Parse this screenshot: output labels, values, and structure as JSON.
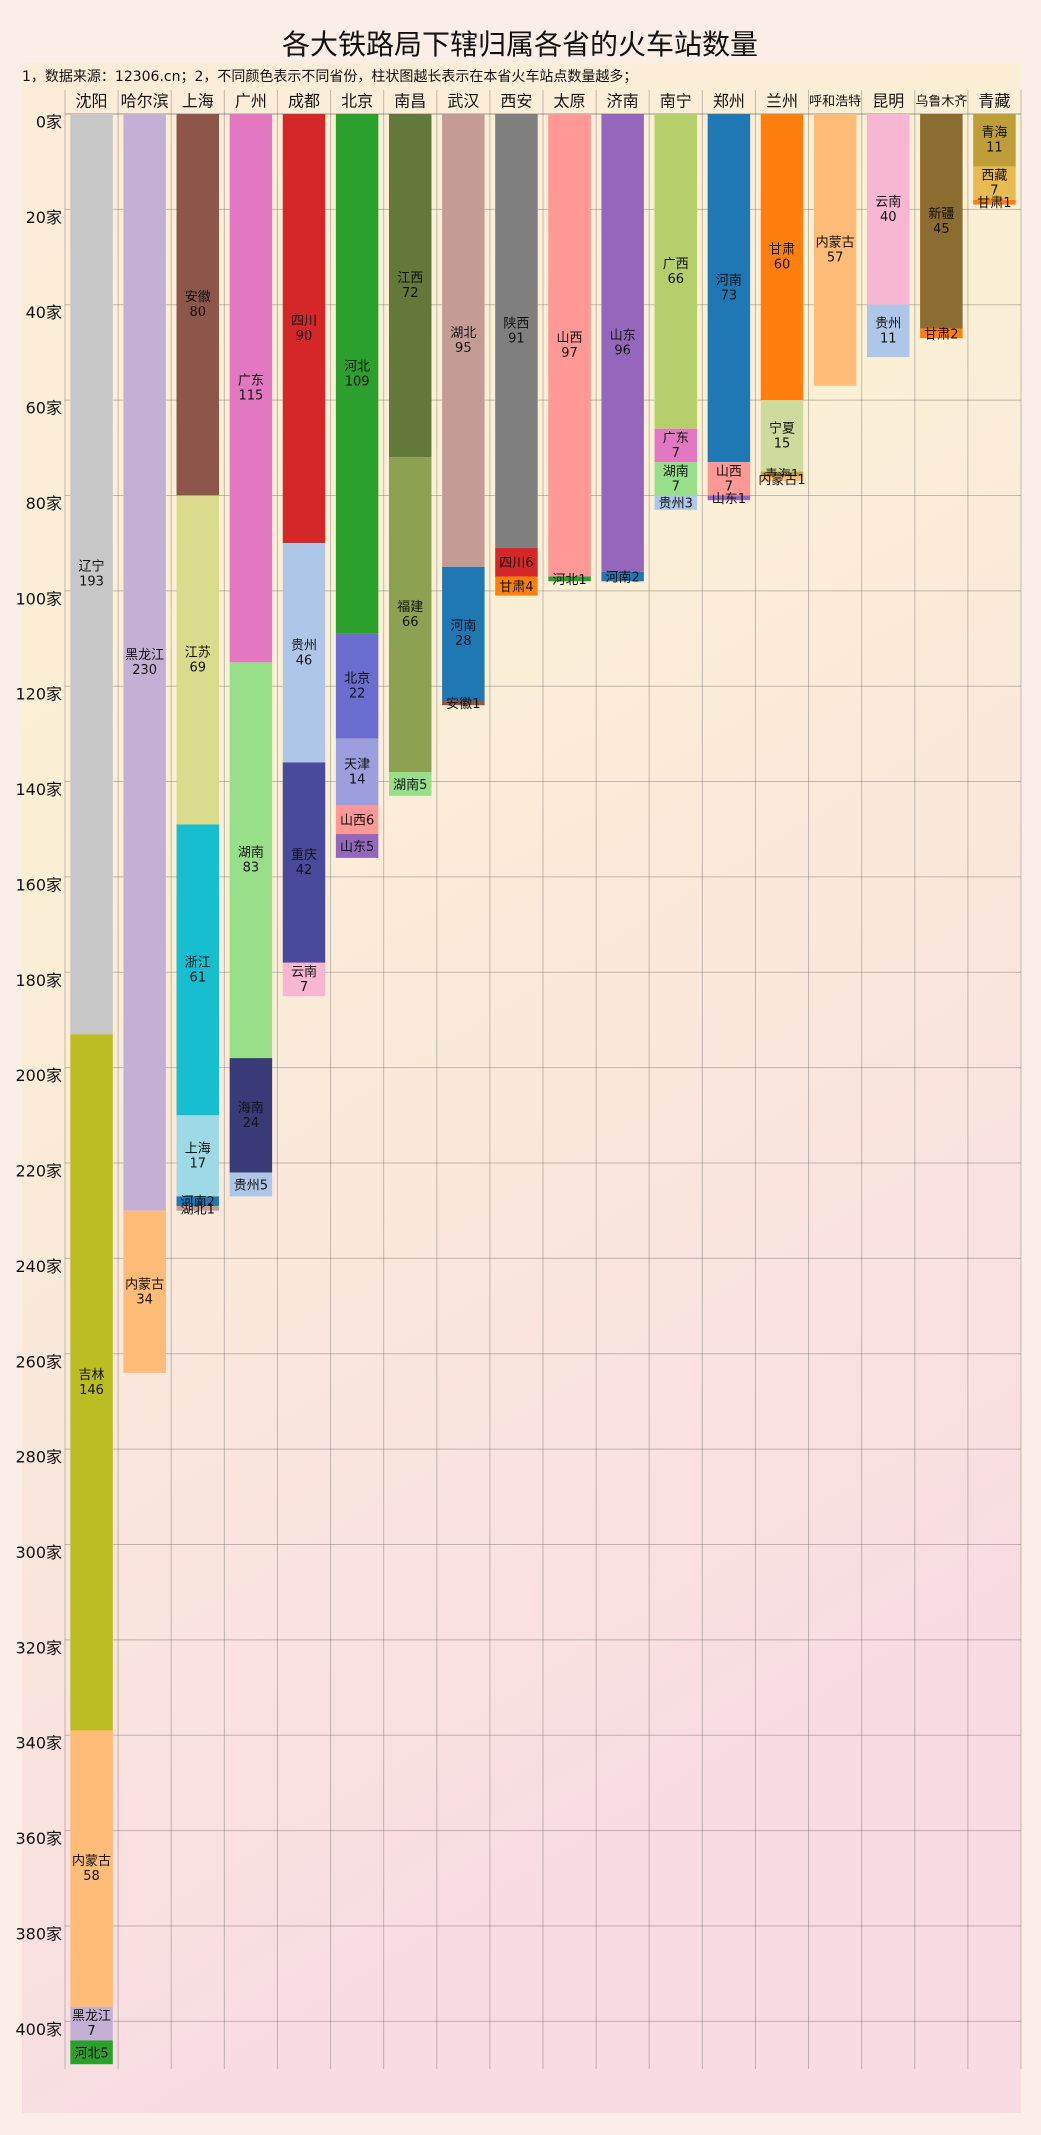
{
  "chart_data": {
    "type": "stacked_bar",
    "title": "各大铁路局下辖归属各省的火车站数量",
    "note": "1，数据来源：12306.cn；2，不同颜色表示不同省份，柱状图越长表示在本省火车站点数量越多；",
    "ylim": [
      0,
      410
    ],
    "yticks": [
      {
        "value": 0,
        "label": "0家"
      },
      {
        "value": 20,
        "label": "20家"
      },
      {
        "value": 40,
        "label": "40家"
      },
      {
        "value": 60,
        "label": "60家"
      },
      {
        "value": 80,
        "label": "80家"
      },
      {
        "value": 100,
        "label": "100家"
      },
      {
        "value": 120,
        "label": "120家"
      },
      {
        "value": 140,
        "label": "140家"
      },
      {
        "value": 160,
        "label": "160家"
      },
      {
        "value": 180,
        "label": "180家"
      },
      {
        "value": 200,
        "label": "200家"
      },
      {
        "value": 220,
        "label": "220家"
      },
      {
        "value": 240,
        "label": "240家"
      },
      {
        "value": 260,
        "label": "260家"
      },
      {
        "value": 280,
        "label": "280家"
      },
      {
        "value": 300,
        "label": "300家"
      },
      {
        "value": 320,
        "label": "320家"
      },
      {
        "value": 340,
        "label": "340家"
      },
      {
        "value": 360,
        "label": "360家"
      },
      {
        "value": 380,
        "label": "380家"
      },
      {
        "value": 400,
        "label": "400家"
      }
    ],
    "grid": true,
    "colors": {
      "辽宁": "#c7c7c7",
      "吉林": "#bcbd22",
      "内蒙古": "#ffbb78",
      "黑龙江": "#c5b0d5",
      "河北": "#2ca02c",
      "安徽": "#8c564b",
      "江苏": "#dbdb8d",
      "浙江": "#17becf",
      "上海": "#9edae5",
      "河南": "#1f77b4",
      "湖北": "#c49c94",
      "广东": "#e377c2",
      "湖南": "#98df8a",
      "海南": "#393b79",
      "贵州": "#aec7e8",
      "四川": "#d62728",
      "重庆": "#4a4a9c",
      "云南": "#f7b6d2",
      "北京": "#6b6ecf",
      "天津": "#9c9ede",
      "山西": "#ff9896",
      "山东": "#9467bd",
      "江西": "#637939",
      "福建": "#8ca252",
      "陕西": "#7f7f7f",
      "甘肃": "#ff7f0e",
      "广西": "#b5cf6b",
      "宁夏": "#cedb9c",
      "青海": "#bd9e39",
      "西藏": "#e7ba52",
      "新疆": "#8c6d31"
    },
    "categories": [
      "沈阳",
      "哈尔滨",
      "上海",
      "广州",
      "成都",
      "北京",
      "南昌",
      "武汉",
      "西安",
      "太原",
      "济南",
      "南宁",
      "郑州",
      "兰州",
      "呼和浩特",
      "昆明",
      "乌鲁木齐",
      "青藏"
    ],
    "stacks": [
      [
        {
          "name": "辽宁",
          "value": 193
        },
        {
          "name": "吉林",
          "value": 146
        },
        {
          "name": "内蒙古",
          "value": 58
        },
        {
          "name": "黑龙江",
          "value": 7
        },
        {
          "name": "河北",
          "value": 5
        }
      ],
      [
        {
          "name": "黑龙江",
          "value": 230
        },
        {
          "name": "内蒙古",
          "value": 34
        }
      ],
      [
        {
          "name": "安徽",
          "value": 80
        },
        {
          "name": "江苏",
          "value": 69
        },
        {
          "name": "浙江",
          "value": 61
        },
        {
          "name": "上海",
          "value": 17
        },
        {
          "name": "河南",
          "value": 2
        },
        {
          "name": "湖北",
          "value": 1
        }
      ],
      [
        {
          "name": "广东",
          "value": 115
        },
        {
          "name": "湖南",
          "value": 83
        },
        {
          "name": "海南",
          "value": 24
        },
        {
          "name": "贵州",
          "value": 5
        }
      ],
      [
        {
          "name": "四川",
          "value": 90
        },
        {
          "name": "贵州",
          "value": 46
        },
        {
          "name": "重庆",
          "value": 42
        },
        {
          "name": "云南",
          "value": 7
        }
      ],
      [
        {
          "name": "河北",
          "value": 109
        },
        {
          "name": "北京",
          "value": 22
        },
        {
          "name": "天津",
          "value": 14
        },
        {
          "name": "山西",
          "value": 6
        },
        {
          "name": "山东",
          "value": 5
        }
      ],
      [
        {
          "name": "江西",
          "value": 72
        },
        {
          "name": "福建",
          "value": 66
        },
        {
          "name": "湖南",
          "value": 5
        }
      ],
      [
        {
          "name": "湖北",
          "value": 95
        },
        {
          "name": "河南",
          "value": 28
        },
        {
          "name": "安徽",
          "value": 1
        }
      ],
      [
        {
          "name": "陕西",
          "value": 91
        },
        {
          "name": "四川",
          "value": 6
        },
        {
          "name": "甘肃",
          "value": 4
        }
      ],
      [
        {
          "name": "山西",
          "value": 97
        },
        {
          "name": "河北",
          "value": 1
        }
      ],
      [
        {
          "name": "山东",
          "value": 96
        },
        {
          "name": "河南",
          "value": 2
        }
      ],
      [
        {
          "name": "广西",
          "value": 66
        },
        {
          "name": "广东",
          "value": 7
        },
        {
          "name": "湖南",
          "value": 7
        },
        {
          "name": "贵州",
          "value": 3
        }
      ],
      [
        {
          "name": "河南",
          "value": 73
        },
        {
          "name": "山西",
          "value": 7
        },
        {
          "name": "山东",
          "value": 1
        }
      ],
      [
        {
          "name": "甘肃",
          "value": 60
        },
        {
          "name": "宁夏",
          "value": 15
        },
        {
          "name": "青海",
          "value": 1
        },
        {
          "name": "内蒙古",
          "value": 1
        }
      ],
      [
        {
          "name": "内蒙古",
          "value": 57
        }
      ],
      [
        {
          "name": "云南",
          "value": 40
        },
        {
          "name": "贵州",
          "value": 11
        }
      ],
      [
        {
          "name": "新疆",
          "value": 45
        },
        {
          "name": "甘肃",
          "value": 2
        }
      ],
      [
        {
          "name": "青海",
          "value": 11
        },
        {
          "name": "西藏",
          "value": 7
        },
        {
          "name": "甘肃",
          "value": 1
        }
      ]
    ]
  }
}
